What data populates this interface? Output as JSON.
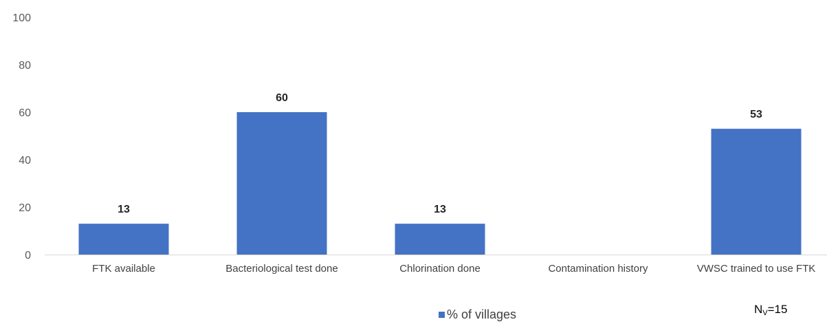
{
  "chart_data": {
    "type": "bar",
    "categories": [
      "FTK available",
      "Bacteriological test done",
      "Chlorination done",
      "Contamination history",
      "VWSC trained to use FTK"
    ],
    "series": [
      {
        "name": "% of villages",
        "values": [
          13,
          60,
          13,
          null,
          53
        ],
        "color": "#4472C4"
      }
    ],
    "data_labels": [
      "13",
      "60",
      "13",
      "",
      "53"
    ],
    "y_ticks": [
      "0",
      "20",
      "40",
      "60",
      "80",
      "100"
    ],
    "ylim": [
      0,
      100
    ],
    "grid": false,
    "legend_position": "bottom"
  },
  "legend": {
    "label": "% of villages",
    "color": "#4472C4"
  },
  "note": {
    "main": "N",
    "sub": "V",
    "suffix": "=15"
  }
}
